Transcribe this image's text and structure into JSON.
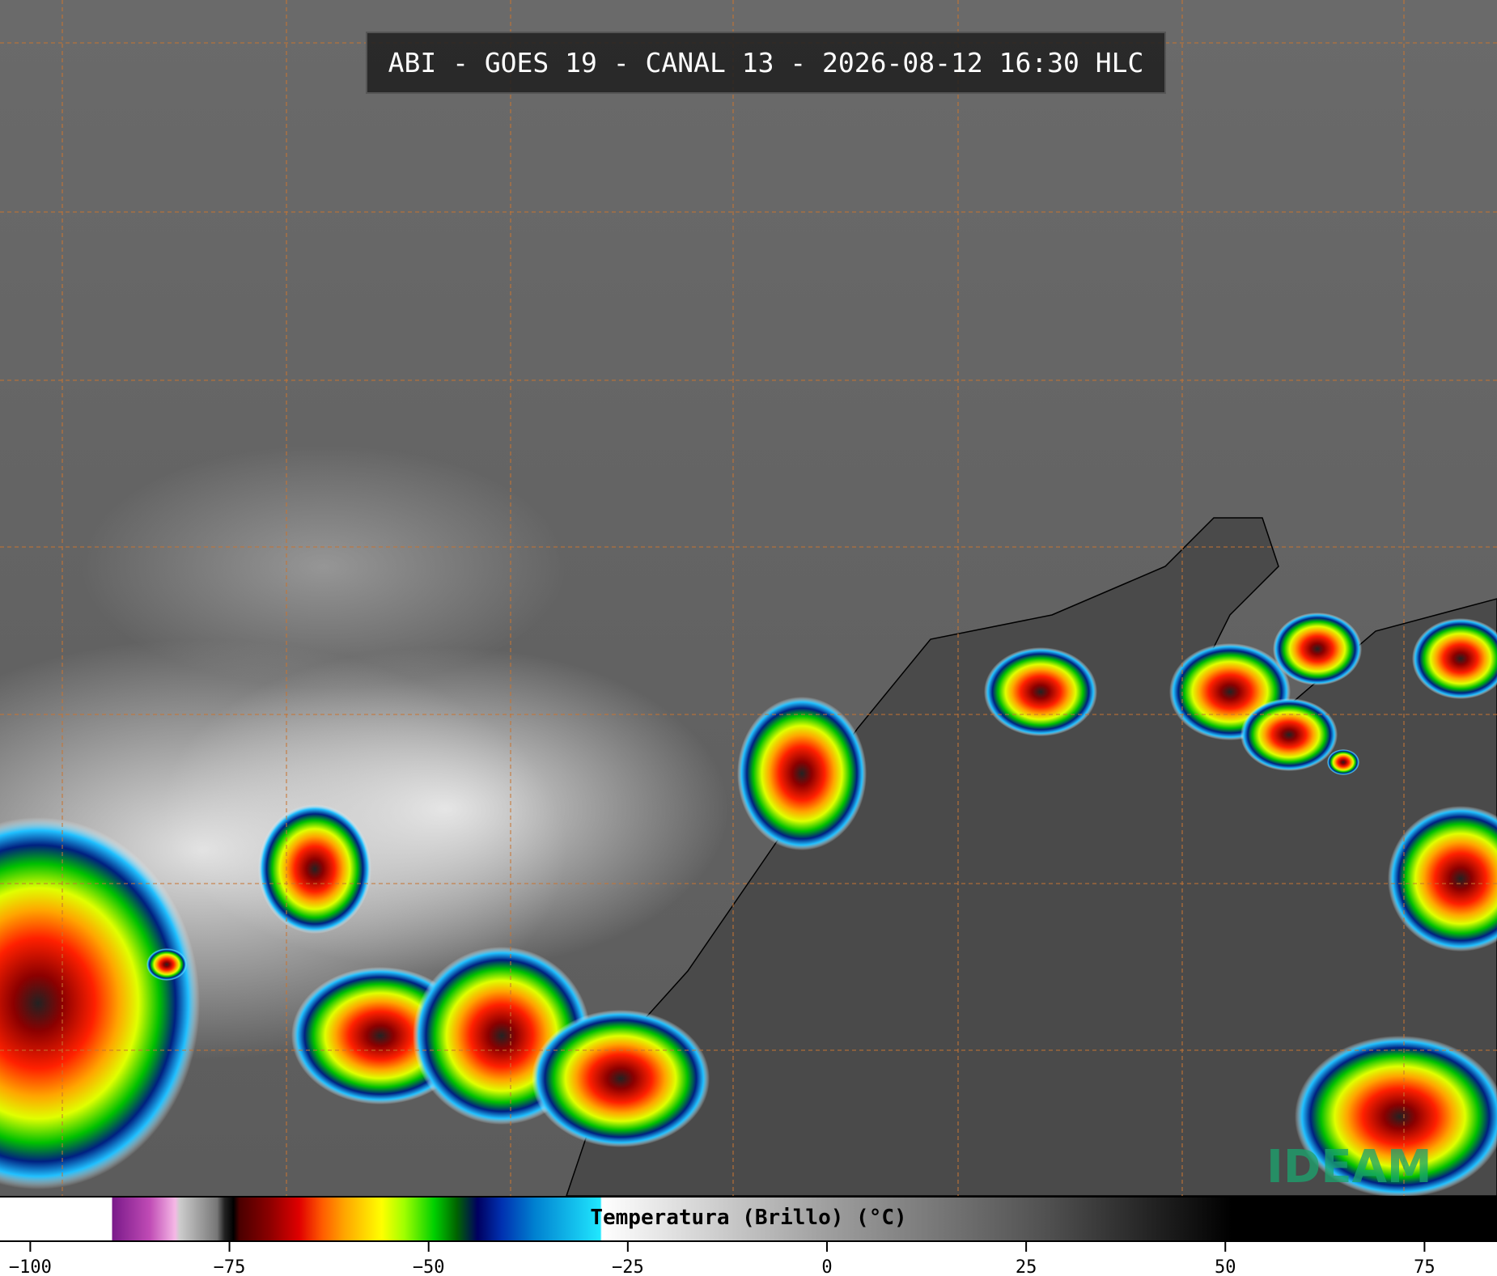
{
  "header": {
    "title": "ABI - GOES 19 - CANAL 13 - 2026-08-12 16:30 HLC"
  },
  "colorbar": {
    "label": "Temperatura (Brillo) (°C)",
    "lim": [
      -103.8,
      84.1
    ],
    "ticks": [
      {
        "value": -100,
        "label": "−100"
      },
      {
        "value": -75,
        "label": "−75"
      },
      {
        "value": -50,
        "label": "−50"
      },
      {
        "value": -25,
        "label": "−25"
      },
      0,
      25,
      50,
      75
    ]
  },
  "logo": {
    "text": "IDEAM"
  }
}
